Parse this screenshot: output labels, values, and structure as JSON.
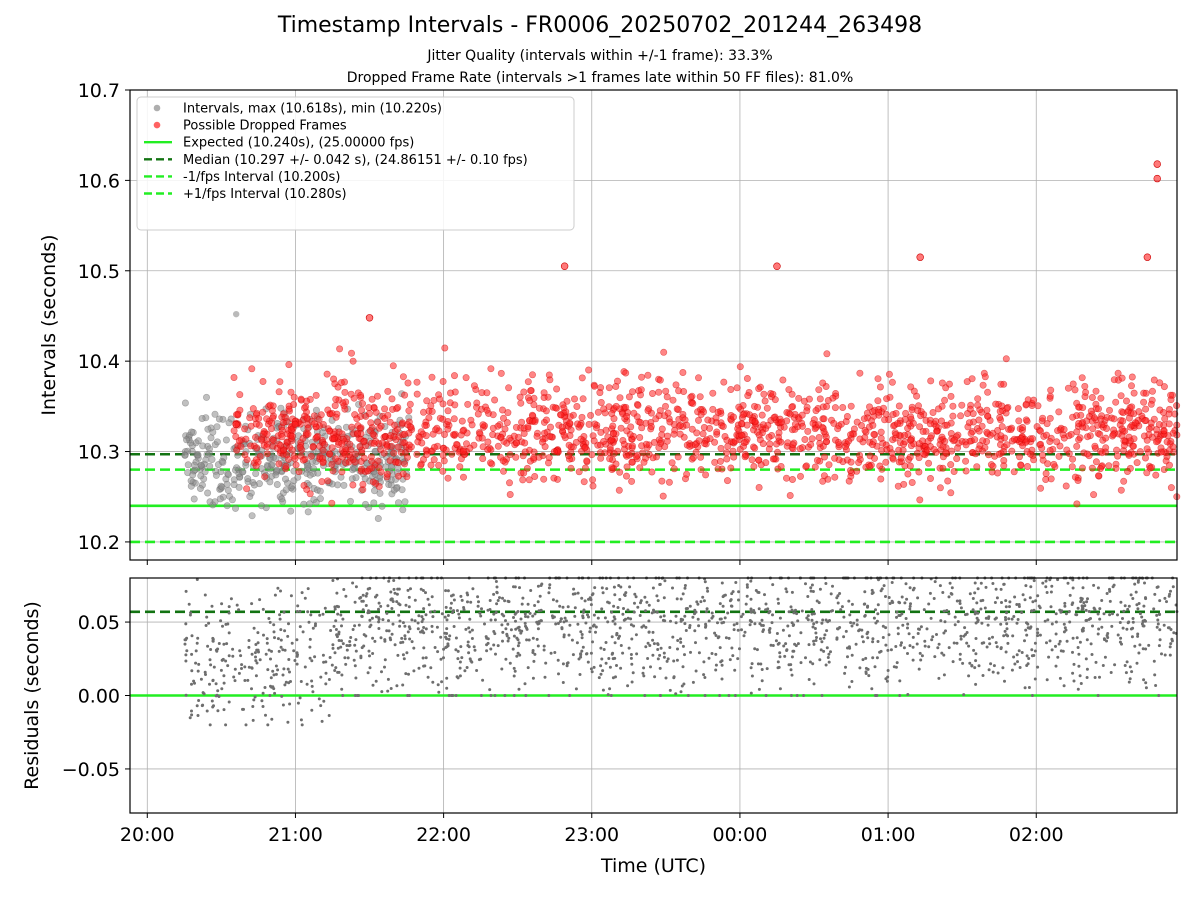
{
  "title": "Timestamp Intervals - FR0006_20250702_201244_263498",
  "subtitle1": "Jitter Quality (intervals within +/-1 frame): 33.3%",
  "subtitle2": "Dropped Frame Rate (intervals >1 frames late within 50 FF files): 81.0%",
  "chart_data": [
    {
      "type": "scatter",
      "panel": "top",
      "xlabel": "",
      "ylabel": "Intervals (seconds)",
      "xlim": [
        "19:53",
        "02:57"
      ],
      "ylim": [
        10.18,
        10.7
      ],
      "xticks": [
        "20:00",
        "21:00",
        "22:00",
        "23:00",
        "00:00",
        "01:00",
        "02:00"
      ],
      "yticks": [
        "10.2",
        "10.3",
        "10.4",
        "10.5",
        "10.6",
        "10.7"
      ],
      "grid": true,
      "legend_position": "upper-left",
      "legend": [
        "Intervals, max (10.618s), min (10.220s)",
        "Possible Dropped Frames",
        "Expected (10.240s), (25.00000 fps)",
        "Median (10.297 +/- 0.042 s), (24.86151 +/- 0.10 fps)",
        "-1/fps Interval (10.200s)",
        "+1/fps Interval (10.280s)"
      ],
      "hlines": [
        {
          "name": "Expected (10.240s), (25.00000 fps)",
          "y": 10.24,
          "style": "solid",
          "color": "#22ee22"
        },
        {
          "name": "Median (10.297 +/- 0.042 s), (24.86151 +/- 0.10 fps)",
          "y": 10.297,
          "style": "dashed",
          "color": "#127312"
        },
        {
          "name": "-1/fps Interval (10.200s)",
          "y": 10.2,
          "style": "dashed",
          "color": "#22ee22"
        },
        {
          "name": "+1/fps Interval (10.280s)",
          "y": 10.28,
          "style": "dashed",
          "color": "#22ee22"
        }
      ],
      "series": [
        {
          "name": "Intervals, max (10.618s), min (10.220s)",
          "color": "#8c8c8c",
          "time_start": "20:15",
          "time_end": "21:46",
          "y_min": 10.22,
          "y_max": 10.452,
          "y_typical": 10.275,
          "count": 420
        },
        {
          "name": "Possible Dropped Frames",
          "color": "#ff2020",
          "time_start": "20:35",
          "time_end": "02:57",
          "y_min": 10.242,
          "y_max": 10.618,
          "y_typical": 10.305,
          "count": 1750,
          "notable_points": [
            {
              "x": "02:49",
              "y": 10.618
            },
            {
              "x": "02:49",
              "y": 10.602
            },
            {
              "x": "02:45",
              "y": 10.515
            },
            {
              "x": "01:13",
              "y": 10.515
            },
            {
              "x": "00:15",
              "y": 10.505
            },
            {
              "x": "22:49",
              "y": 10.505
            },
            {
              "x": "21:30",
              "y": 10.448
            },
            {
              "x": "20:36",
              "y": 10.33
            }
          ]
        }
      ]
    },
    {
      "type": "scatter",
      "panel": "bottom",
      "xlabel": "Time (UTC)",
      "ylabel": "Residuals (seconds)",
      "xlim": [
        "19:53",
        "02:57"
      ],
      "ylim": [
        -0.08,
        0.08
      ],
      "xticks": [
        "20:00",
        "21:00",
        "22:00",
        "23:00",
        "00:00",
        "01:00",
        "02:00"
      ],
      "yticks": [
        "−0.05",
        "0.00",
        "0.05"
      ],
      "grid": true,
      "hlines": [
        {
          "name": "zero",
          "y": 0.0,
          "style": "solid",
          "color": "#22ee22"
        },
        {
          "name": "median",
          "y": 0.057,
          "style": "dashed",
          "color": "#127312"
        }
      ],
      "series": [
        {
          "name": "residuals",
          "color": "#6e6e6e",
          "time_start": "20:15",
          "time_end": "02:57",
          "y_min": -0.02,
          "y_max": 0.08,
          "count": 1900
        }
      ]
    }
  ]
}
